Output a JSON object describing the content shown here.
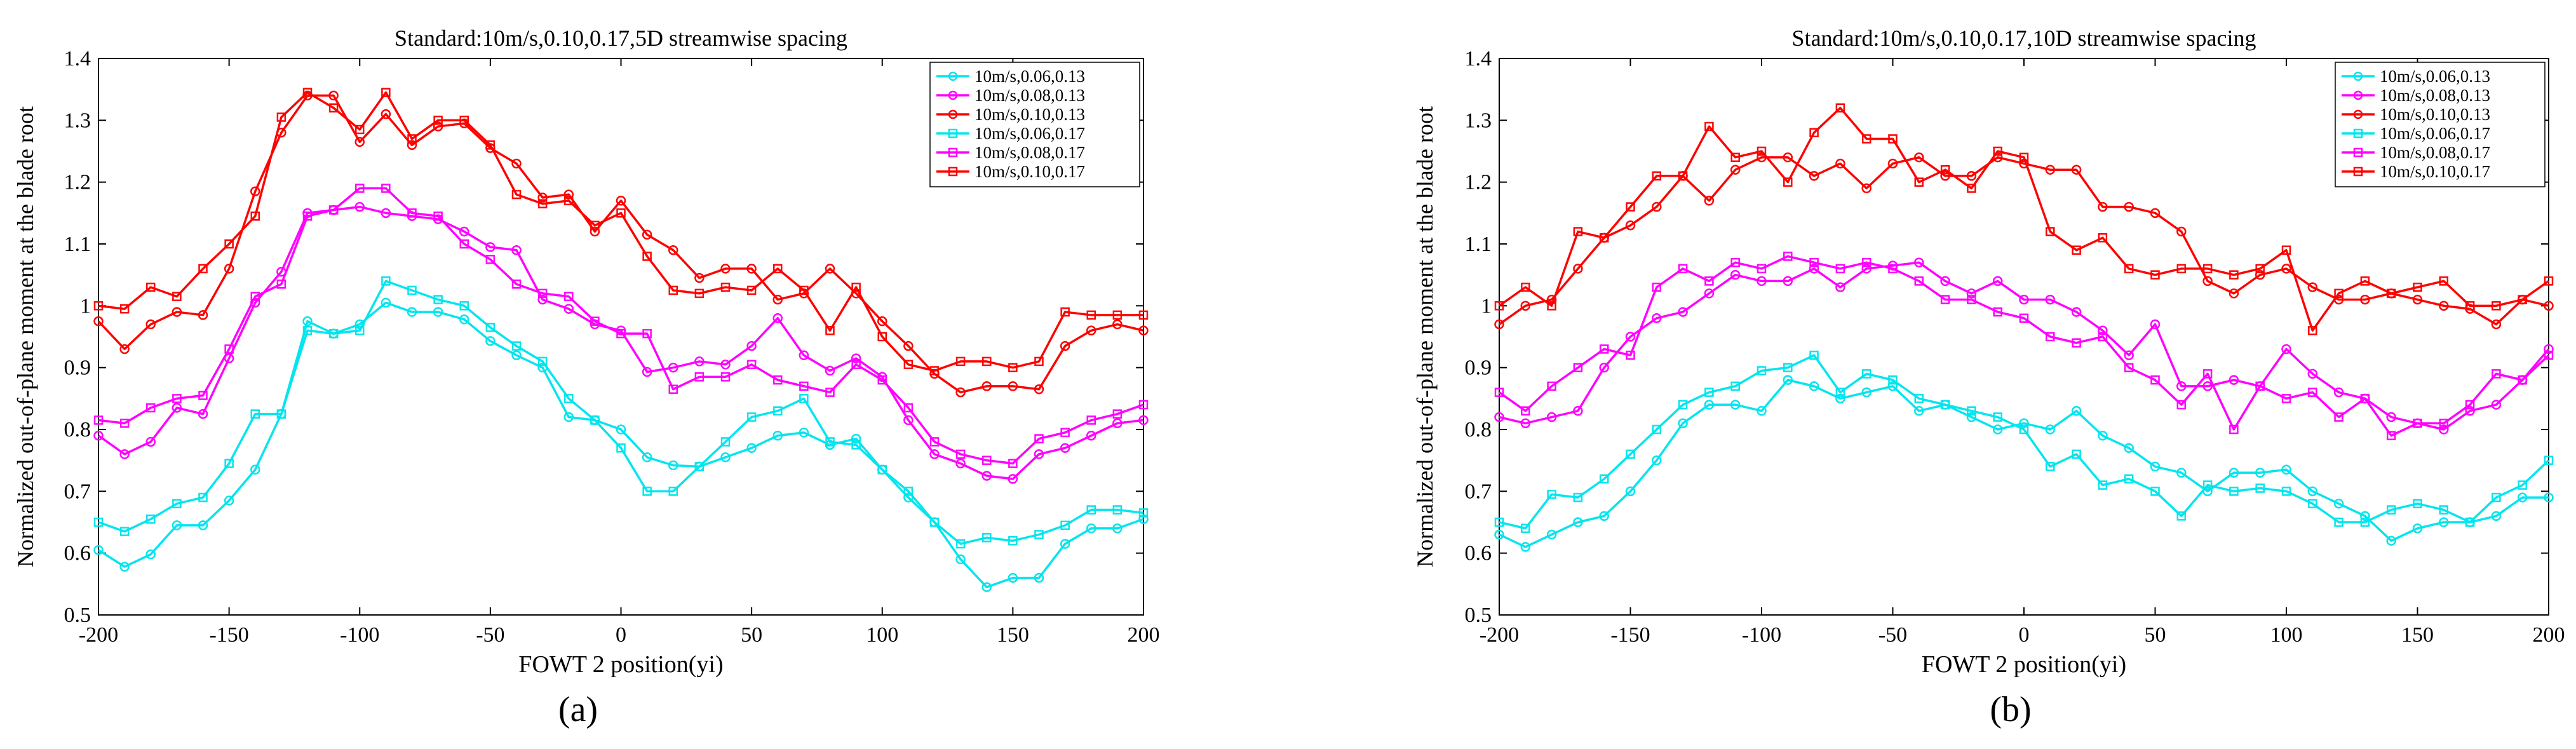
{
  "chart_data": [
    {
      "type": "line",
      "panel_label": "(a)",
      "title": "Standard:10m/s,0.10,0.17,5D streamwise spacing",
      "xlabel": "FOWT 2 position(yi)",
      "ylabel": "Normalized out-of-plane moment at the blade root",
      "xlim": [
        -200,
        200
      ],
      "ylim": [
        0.5,
        1.4
      ],
      "xticks": [
        "-200",
        "-150",
        "-100",
        "-50",
        "0",
        "50",
        "100",
        "150",
        "200"
      ],
      "yticks": [
        "0.5",
        "0.6",
        "0.7",
        "0.8",
        "0.9",
        "1",
        "1.1",
        "1.2",
        "1.3",
        "1.4"
      ],
      "x": [
        -200,
        -190,
        -180,
        -170,
        -160,
        -150,
        -140,
        -130,
        -120,
        -110,
        -100,
        -90,
        -80,
        -70,
        -60,
        -50,
        -40,
        -30,
        -20,
        -10,
        0,
        10,
        20,
        30,
        40,
        50,
        60,
        70,
        80,
        90,
        100,
        110,
        120,
        130,
        140,
        150,
        160,
        170,
        180,
        190,
        200
      ],
      "legend_position": "top-right",
      "series": [
        {
          "name": "10m/s,0.06,0.13",
          "color": "#00e5ee",
          "marker": "circle",
          "values": [
            0.605,
            0.578,
            0.598,
            0.645,
            0.645,
            0.685,
            0.735,
            0.825,
            0.975,
            0.955,
            0.97,
            1.005,
            0.99,
            0.99,
            0.978,
            0.943,
            0.92,
            0.9,
            0.82,
            0.815,
            0.8,
            0.755,
            0.742,
            0.74,
            0.755,
            0.77,
            0.79,
            0.795,
            0.775,
            0.785,
            0.735,
            0.69,
            0.65,
            0.59,
            0.545,
            0.56,
            0.56,
            0.615,
            0.64,
            0.64,
            0.655
          ]
        },
        {
          "name": "10m/s,0.08,0.13",
          "color": "#ff00ff",
          "marker": "circle",
          "values": [
            0.79,
            0.76,
            0.78,
            0.835,
            0.825,
            0.915,
            1.005,
            1.055,
            1.15,
            1.155,
            1.16,
            1.15,
            1.145,
            1.14,
            1.12,
            1.095,
            1.09,
            1.01,
            0.995,
            0.97,
            0.96,
            0.893,
            0.9,
            0.91,
            0.905,
            0.935,
            0.98,
            0.92,
            0.895,
            0.915,
            0.885,
            0.815,
            0.76,
            0.745,
            0.725,
            0.72,
            0.76,
            0.77,
            0.79,
            0.81,
            0.815
          ]
        },
        {
          "name": "10m/s,0.10,0.13",
          "color": "#ff0000",
          "marker": "circle",
          "values": [
            0.975,
            0.93,
            0.97,
            0.99,
            0.985,
            1.06,
            1.185,
            1.28,
            1.34,
            1.34,
            1.265,
            1.31,
            1.26,
            1.29,
            1.295,
            1.255,
            1.23,
            1.175,
            1.18,
            1.12,
            1.17,
            1.115,
            1.09,
            1.045,
            1.06,
            1.06,
            1.01,
            1.02,
            1.06,
            1.02,
            0.975,
            0.935,
            0.89,
            0.86,
            0.87,
            0.87,
            0.865,
            0.935,
            0.96,
            0.97,
            0.96
          ]
        },
        {
          "name": "10m/s,0.06,0.17",
          "color": "#00e5ee",
          "marker": "square",
          "values": [
            0.65,
            0.635,
            0.655,
            0.68,
            0.69,
            0.745,
            0.825,
            0.825,
            0.96,
            0.955,
            0.96,
            1.04,
            1.025,
            1.01,
            1.0,
            0.965,
            0.935,
            0.91,
            0.85,
            0.815,
            0.77,
            0.7,
            0.7,
            0.74,
            0.78,
            0.82,
            0.83,
            0.85,
            0.78,
            0.775,
            0.735,
            0.7,
            0.65,
            0.615,
            0.625,
            0.62,
            0.63,
            0.645,
            0.67,
            0.67,
            0.665
          ]
        },
        {
          "name": "10m/s,0.08,0.17",
          "color": "#ff00ff",
          "marker": "square",
          "values": [
            0.815,
            0.81,
            0.835,
            0.85,
            0.855,
            0.93,
            1.015,
            1.035,
            1.145,
            1.155,
            1.19,
            1.19,
            1.15,
            1.145,
            1.1,
            1.075,
            1.035,
            1.02,
            1.015,
            0.975,
            0.955,
            0.955,
            0.865,
            0.885,
            0.885,
            0.905,
            0.88,
            0.87,
            0.86,
            0.905,
            0.88,
            0.835,
            0.78,
            0.76,
            0.75,
            0.745,
            0.785,
            0.795,
            0.815,
            0.825,
            0.84
          ]
        },
        {
          "name": "10m/s,0.10,0.17",
          "color": "#ff0000",
          "marker": "square",
          "values": [
            1.0,
            0.995,
            1.03,
            1.015,
            1.06,
            1.1,
            1.145,
            1.305,
            1.345,
            1.32,
            1.285,
            1.345,
            1.27,
            1.3,
            1.3,
            1.26,
            1.18,
            1.165,
            1.17,
            1.13,
            1.15,
            1.08,
            1.025,
            1.02,
            1.03,
            1.025,
            1.06,
            1.025,
            0.96,
            1.03,
            0.95,
            0.905,
            0.895,
            0.91,
            0.91,
            0.9,
            0.91,
            0.99,
            0.985,
            0.985,
            0.985
          ]
        }
      ]
    },
    {
      "type": "line",
      "panel_label": "(b)",
      "title": "Standard:10m/s,0.10,0.17,10D streamwise spacing",
      "xlabel": "FOWT 2 position(yi)",
      "ylabel": "Normalized out-of-plane moment at the blade root",
      "xlim": [
        -200,
        200
      ],
      "ylim": [
        0.5,
        1.4
      ],
      "xticks": [
        "-200",
        "-150",
        "-100",
        "-50",
        "0",
        "50",
        "100",
        "150",
        "200"
      ],
      "yticks": [
        "0.5",
        "0.6",
        "0.7",
        "0.8",
        "0.9",
        "1",
        "1.1",
        "1.2",
        "1.3",
        "1.4"
      ],
      "x": [
        -200,
        -190,
        -180,
        -170,
        -160,
        -150,
        -140,
        -130,
        -120,
        -110,
        -100,
        -90,
        -80,
        -70,
        -60,
        -50,
        -40,
        -30,
        -20,
        -10,
        0,
        10,
        20,
        30,
        40,
        50,
        60,
        70,
        80,
        90,
        100,
        110,
        120,
        130,
        140,
        150,
        160,
        170,
        180,
        190,
        200
      ],
      "legend_position": "top-right",
      "series": [
        {
          "name": "10m/s,0.06,0.13",
          "color": "#00e5ee",
          "marker": "circle",
          "values": [
            0.63,
            0.61,
            0.63,
            0.65,
            0.66,
            0.7,
            0.75,
            0.81,
            0.84,
            0.84,
            0.83,
            0.88,
            0.87,
            0.85,
            0.86,
            0.87,
            0.83,
            0.84,
            0.82,
            0.8,
            0.81,
            0.8,
            0.83,
            0.79,
            0.77,
            0.74,
            0.73,
            0.7,
            0.73,
            0.73,
            0.735,
            0.7,
            0.68,
            0.66,
            0.62,
            0.64,
            0.65,
            0.65,
            0.66,
            0.69,
            0.69
          ]
        },
        {
          "name": "10m/s,0.08,0.13",
          "color": "#ff00ff",
          "marker": "circle",
          "values": [
            0.82,
            0.81,
            0.82,
            0.83,
            0.9,
            0.95,
            0.98,
            0.99,
            1.02,
            1.05,
            1.04,
            1.04,
            1.06,
            1.03,
            1.06,
            1.065,
            1.07,
            1.04,
            1.02,
            1.04,
            1.01,
            1.01,
            0.99,
            0.96,
            0.92,
            0.97,
            0.87,
            0.87,
            0.88,
            0.87,
            0.93,
            0.89,
            0.86,
            0.85,
            0.82,
            0.81,
            0.8,
            0.83,
            0.84,
            0.88,
            0.93
          ]
        },
        {
          "name": "10m/s,0.10,0.13",
          "color": "#ff0000",
          "marker": "circle",
          "values": [
            0.97,
            1.0,
            1.01,
            1.06,
            1.11,
            1.13,
            1.16,
            1.21,
            1.17,
            1.22,
            1.24,
            1.24,
            1.21,
            1.23,
            1.19,
            1.23,
            1.24,
            1.21,
            1.21,
            1.24,
            1.23,
            1.22,
            1.22,
            1.16,
            1.16,
            1.15,
            1.12,
            1.04,
            1.02,
            1.05,
            1.06,
            1.03,
            1.01,
            1.01,
            1.02,
            1.01,
            1.0,
            0.995,
            0.97,
            1.01,
            1.0
          ]
        },
        {
          "name": "10m/s,0.06,0.17",
          "color": "#00e5ee",
          "marker": "square",
          "values": [
            0.65,
            0.64,
            0.695,
            0.69,
            0.72,
            0.76,
            0.8,
            0.84,
            0.86,
            0.87,
            0.895,
            0.9,
            0.92,
            0.86,
            0.89,
            0.88,
            0.85,
            0.84,
            0.83,
            0.82,
            0.8,
            0.74,
            0.76,
            0.71,
            0.72,
            0.7,
            0.66,
            0.71,
            0.7,
            0.705,
            0.7,
            0.68,
            0.65,
            0.65,
            0.67,
            0.68,
            0.67,
            0.65,
            0.69,
            0.71,
            0.75
          ]
        },
        {
          "name": "10m/s,0.08,0.17",
          "color": "#ff00ff",
          "marker": "square",
          "values": [
            0.86,
            0.83,
            0.87,
            0.9,
            0.93,
            0.92,
            1.03,
            1.06,
            1.04,
            1.07,
            1.06,
            1.08,
            1.07,
            1.06,
            1.07,
            1.06,
            1.04,
            1.01,
            1.01,
            0.99,
            0.98,
            0.95,
            0.94,
            0.95,
            0.9,
            0.88,
            0.84,
            0.89,
            0.8,
            0.87,
            0.85,
            0.86,
            0.82,
            0.85,
            0.79,
            0.81,
            0.81,
            0.84,
            0.89,
            0.88,
            0.92
          ]
        },
        {
          "name": "10m/s,0.10,0.17",
          "color": "#ff0000",
          "marker": "square",
          "values": [
            1.0,
            1.03,
            1.0,
            1.12,
            1.11,
            1.16,
            1.21,
            1.21,
            1.29,
            1.24,
            1.25,
            1.2,
            1.28,
            1.32,
            1.27,
            1.27,
            1.2,
            1.22,
            1.19,
            1.25,
            1.24,
            1.12,
            1.09,
            1.11,
            1.06,
            1.05,
            1.06,
            1.06,
            1.05,
            1.06,
            1.09,
            0.96,
            1.02,
            1.04,
            1.02,
            1.03,
            1.04,
            1.0,
            1.0,
            1.01,
            1.04
          ]
        }
      ]
    }
  ]
}
